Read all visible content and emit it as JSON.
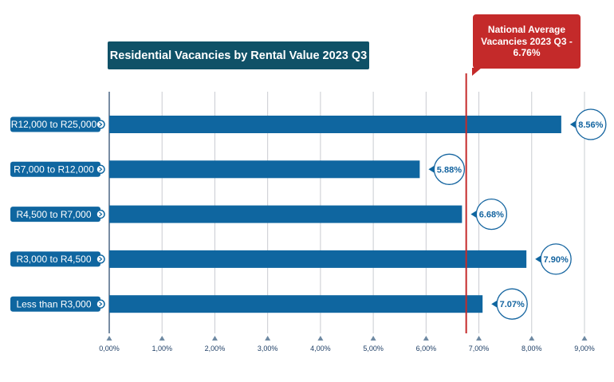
{
  "chart_data": {
    "type": "bar",
    "orientation": "horizontal",
    "title": "Residential Vacancies by Rental Value 2023 Q3",
    "categories": [
      "R12,000 to R25,000",
      "R7,000 to R12,000",
      "R4,500 to R7,000",
      "R3,000 to R4,500",
      "Less than R3,000"
    ],
    "values": [
      8.56,
      5.88,
      6.68,
      7.9,
      7.07
    ],
    "value_labels": [
      "8.56%",
      "5.88%",
      "6.68%",
      "7.90%",
      "7.07%"
    ],
    "xlim": [
      0,
      9
    ],
    "x_ticks": [
      0,
      1,
      2,
      3,
      4,
      5,
      6,
      7,
      8,
      9
    ],
    "x_tick_labels": [
      "0,00%",
      "1,00%",
      "2,00%",
      "3,00%",
      "4,00%",
      "5,00%",
      "6,00%",
      "7,00%",
      "8,00%",
      "9,00%"
    ],
    "grid": true,
    "reference_line": {
      "value": 6.76,
      "label": "National Average Vacancies 2023 Q3 - 6.76%"
    },
    "colors": {
      "bar": "#0f66a0",
      "title_bg": "#0f5167",
      "reference": "#c42a2a",
      "label_bg": "#0f66a0"
    }
  }
}
